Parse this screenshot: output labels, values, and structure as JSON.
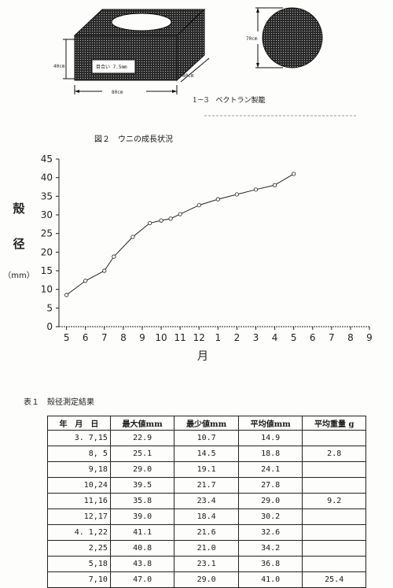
{
  "figure1": {
    "label_height": "40cm",
    "label_inner": "目合い 7.5mm",
    "label_depth": "80cm",
    "label_width": "80cm",
    "label_diameter": "70cm",
    "caption": "1－3　ベクトラン製籠"
  },
  "figure2": {
    "caption": "図２　ウニの成長状況"
  },
  "chart_data": {
    "type": "line",
    "ylabel": [
      "殻",
      "径",
      "（mm）"
    ],
    "xlabel": "月",
    "ylim": [
      0,
      45
    ],
    "yticks": [
      0,
      5,
      10,
      15,
      20,
      25,
      30,
      35,
      40,
      45
    ],
    "xticks": [
      "5",
      "6",
      "7",
      "8",
      "9",
      "10",
      "11",
      "12",
      "1",
      "2",
      "3",
      "4",
      "5",
      "6",
      "7",
      "8",
      "9"
    ],
    "grid": false,
    "series": [
      {
        "x": [
          5.0,
          6.0,
          7.0,
          7.5,
          8.5,
          9.4,
          10.0,
          10.5,
          11.0,
          12.0,
          13.0,
          14.0,
          15.0,
          16.0,
          17.0
        ],
        "y": [
          8.5,
          12.3,
          15.0,
          18.8,
          24.1,
          27.8,
          28.5,
          29.0,
          30.2,
          32.6,
          34.2,
          35.5,
          36.8,
          38.0,
          41.0
        ]
      }
    ]
  },
  "table": {
    "caption": "表１　殻径測定結果",
    "headers": [
      "年　月　日",
      "最大値mm",
      "最少値mm",
      "平均値mm",
      "平均重量 g"
    ],
    "rows": [
      [
        "3. 7,15",
        "22.9",
        "10.7",
        "14.9",
        ""
      ],
      [
        "8, 5",
        "25.1",
        "14.5",
        "18.8",
        "2.8"
      ],
      [
        "9,18",
        "29.0",
        "19.1",
        "24.1",
        ""
      ],
      [
        "10,24",
        "39.5",
        "21.7",
        "27.8",
        ""
      ],
      [
        "11,16",
        "35.8",
        "23.4",
        "29.0",
        "9.2"
      ],
      [
        "12,17",
        "39.0",
        "18.4",
        "30.2",
        ""
      ],
      [
        "4. 1,22",
        "41.1",
        "21.6",
        "32.6",
        ""
      ],
      [
        "2,25",
        "40.8",
        "21.0",
        "34.2",
        ""
      ],
      [
        "5,18",
        "43.8",
        "23.1",
        "36.8",
        ""
      ],
      [
        "7,10",
        "47.0",
        "29.0",
        "41.0",
        "25.4"
      ]
    ]
  }
}
